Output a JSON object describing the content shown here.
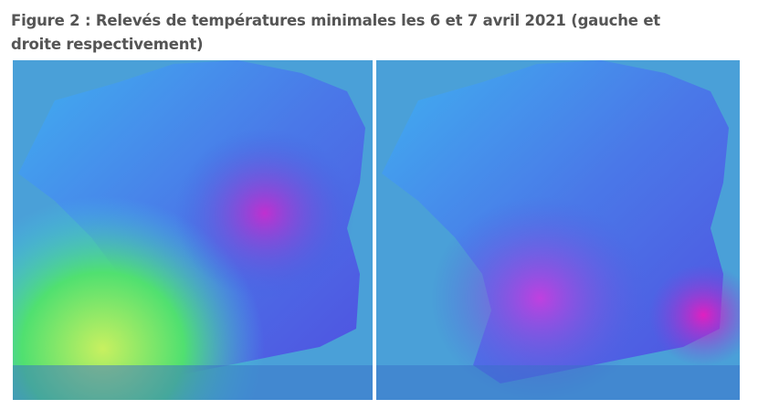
{
  "figure": {
    "title": "Figure 2 : Relevés de températures minimales les 6 et 7 avril 2021 (gauche et droite respectivement)"
  }
}
